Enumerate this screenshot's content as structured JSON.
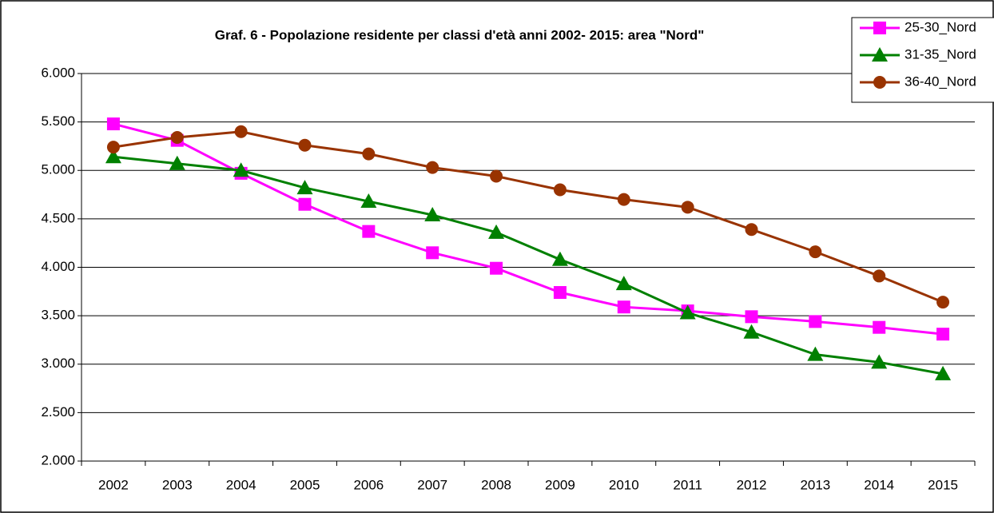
{
  "chart_data": {
    "type": "line",
    "title": "Graf. 6 - Popolazione residente per classi d'età anni 2002- 2015: area \"Nord\"",
    "categories": [
      "2002",
      "2003",
      "2004",
      "2005",
      "2006",
      "2007",
      "2008",
      "2009",
      "2010",
      "2011",
      "2012",
      "2013",
      "2014",
      "2015"
    ],
    "series": [
      {
        "name": "25-30_Nord",
        "color": "#ff00ff",
        "marker": "square",
        "values": [
          5480,
          5310,
          4970,
          4650,
          4370,
          4150,
          3990,
          3740,
          3590,
          3550,
          3490,
          3440,
          3380,
          3310
        ]
      },
      {
        "name": "31-35_Nord",
        "color": "#008000",
        "marker": "triangle",
        "values": [
          5140,
          5070,
          5000,
          4820,
          4680,
          4540,
          4360,
          4080,
          3830,
          3530,
          3330,
          3100,
          3020,
          2900
        ]
      },
      {
        "name": "36-40_Nord",
        "color": "#993300",
        "marker": "circle",
        "values": [
          5240,
          5340,
          5400,
          5260,
          5170,
          5030,
          4940,
          4800,
          4700,
          4620,
          4390,
          4160,
          3910,
          3640
        ]
      }
    ],
    "ylim": [
      2000,
      6000
    ],
    "yticks": [
      {
        "value": 2000,
        "label": "2.000"
      },
      {
        "value": 2500,
        "label": "2.500"
      },
      {
        "value": 3000,
        "label": "3.000"
      },
      {
        "value": 3500,
        "label": "3.500"
      },
      {
        "value": 4000,
        "label": "4.000"
      },
      {
        "value": 4500,
        "label": "4.500"
      },
      {
        "value": 5000,
        "label": "5.000"
      },
      {
        "value": 5500,
        "label": "5.500"
      },
      {
        "value": 6000,
        "label": "6.000"
      }
    ],
    "grid": true,
    "legend": "top-right"
  }
}
